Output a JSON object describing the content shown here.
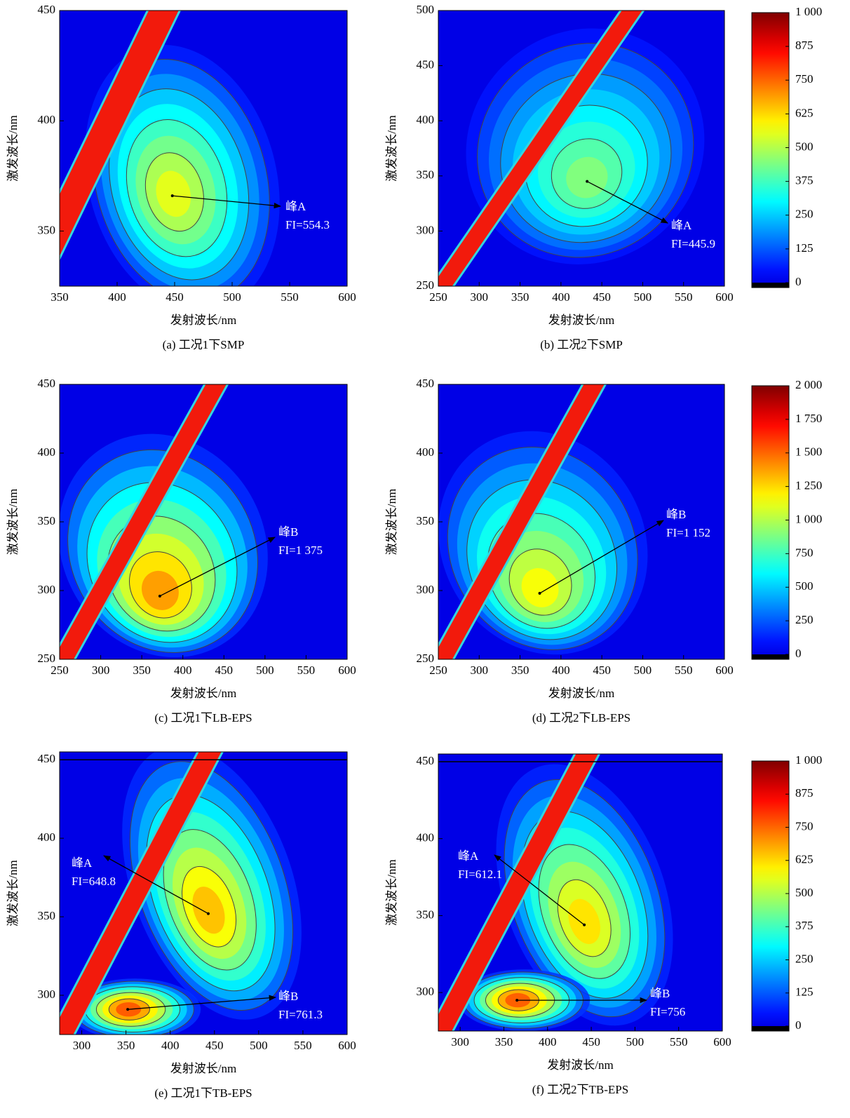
{
  "chart_data": [
    {
      "type": "contour",
      "caption": "(a) 工况1下SMP",
      "xlabel": "发射波长/nm",
      "ylabel": "激发波长/nm",
      "xlim": [
        350,
        600
      ],
      "ylim": [
        325,
        450
      ],
      "xticks": [
        350,
        400,
        450,
        500,
        550,
        600
      ],
      "yticks": [
        350,
        400,
        450
      ],
      "peaks": [
        {
          "name": "峰A",
          "em": 448,
          "ex": 366,
          "fi": 554.3,
          "value_label": "FI=554.3"
        }
      ]
    },
    {
      "type": "contour",
      "caption": "(b) 工况2下SMP",
      "xlabel": "发射波长/nm",
      "ylabel": "激发波长/nm",
      "xlim": [
        250,
        600
      ],
      "ylim": [
        250,
        500
      ],
      "xticks": [
        250,
        300,
        350,
        400,
        450,
        500,
        550,
        600
      ],
      "yticks": [
        250,
        300,
        350,
        400,
        450,
        500
      ],
      "peaks": [
        {
          "name": "峰A",
          "em": 432,
          "ex": 345,
          "fi": 445.9,
          "value_label": "FI=445.9"
        }
      ]
    },
    {
      "type": "contour",
      "caption": "(c) 工况1下LB-EPS",
      "xlabel": "发射波长/nm",
      "ylabel": "激发波长/nm",
      "xlim": [
        250,
        600
      ],
      "ylim": [
        250,
        450
      ],
      "xticks": [
        250,
        300,
        350,
        400,
        450,
        500,
        550,
        600
      ],
      "yticks": [
        250,
        300,
        350,
        400,
        450
      ],
      "peaks": [
        {
          "name": "峰B",
          "em": 372,
          "ex": 296,
          "fi": 1375,
          "value_label": "FI=1 375"
        }
      ]
    },
    {
      "type": "contour",
      "caption": "(d) 工况2下LB-EPS",
      "xlabel": "发射波长/nm",
      "ylabel": "激发波长/nm",
      "xlim": [
        250,
        600
      ],
      "ylim": [
        250,
        450
      ],
      "xticks": [
        250,
        300,
        350,
        400,
        450,
        500,
        550,
        600
      ],
      "yticks": [
        250,
        300,
        350,
        400,
        450
      ],
      "peaks": [
        {
          "name": "峰B",
          "em": 374,
          "ex": 298,
          "fi": 1152,
          "value_label": "FI=1 152"
        }
      ]
    },
    {
      "type": "contour",
      "caption": "(e) 工况1下TB-EPS",
      "xlabel": "发射波长/nm",
      "ylabel": "激发波长/nm",
      "xlim": [
        275,
        600
      ],
      "ylim": [
        275,
        455
      ],
      "xticks": [
        300,
        350,
        400,
        450,
        500,
        550,
        600
      ],
      "yticks": [
        300,
        350,
        400,
        450
      ],
      "peaks": [
        {
          "name": "峰A",
          "em": 443,
          "ex": 352,
          "fi": 648.8,
          "value_label": "FI=648.8"
        },
        {
          "name": "峰B",
          "em": 352,
          "ex": 291,
          "fi": 761.3,
          "value_label": "FI=761.3"
        }
      ]
    },
    {
      "type": "contour",
      "caption": "(f) 工况2下TB-EPS",
      "xlabel": "发射波长/nm",
      "ylabel": "激发波长/nm",
      "xlim": [
        275,
        600
      ],
      "ylim": [
        275,
        455
      ],
      "xticks": [
        300,
        350,
        400,
        450,
        500,
        550,
        600
      ],
      "yticks": [
        300,
        350,
        400,
        450
      ],
      "peaks": [
        {
          "name": "峰A",
          "em": 442,
          "ex": 344,
          "fi": 612.1,
          "value_label": "FI=612.1"
        },
        {
          "name": "峰B",
          "em": 365,
          "ex": 295,
          "fi": 756,
          "value_label": "FI=756"
        }
      ]
    },
    {
      "type": "colorbar",
      "ylim": [
        0,
        1000
      ],
      "yticks": [
        0,
        125,
        250,
        375,
        500,
        625,
        750,
        875,
        {
          "value": 1000,
          "label": "1 000"
        }
      ]
    },
    {
      "type": "colorbar",
      "ylim": [
        0,
        2000
      ],
      "yticks": [
        0,
        250,
        500,
        750,
        {
          "value": 1000,
          "label": "1 000"
        },
        {
          "value": 1250,
          "label": "1 250"
        },
        {
          "value": 1500,
          "label": "1 500"
        },
        {
          "value": 1750,
          "label": "1 750"
        },
        {
          "value": 2000,
          "label": "2 000"
        }
      ]
    },
    {
      "type": "colorbar",
      "ylim": [
        0,
        1000
      ],
      "yticks": [
        0,
        125,
        250,
        375,
        500,
        625,
        750,
        875,
        {
          "value": 1000,
          "label": "1 000"
        }
      ]
    }
  ]
}
